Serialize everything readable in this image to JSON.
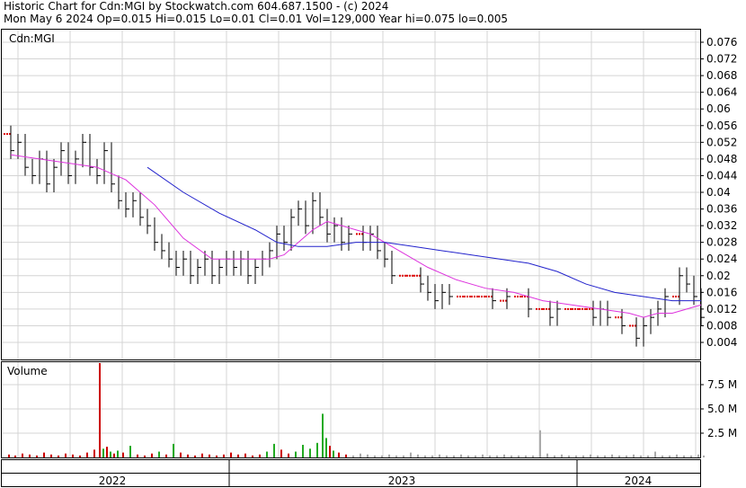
{
  "header": {
    "line1": "Historic Chart for Cdn:MGI by Stockwatch.com 604.687.1500 - (c) 2024",
    "line2": "Mon May  6 2024   Op=0.015  Hi=0.015  Lo=0.01  Cl=0.01  Vol=129,000  Year hi=0.075  lo=0.005"
  },
  "colors": {
    "candle": "#000000",
    "flat": "#dd0000",
    "ma_short": "#dd33dd",
    "ma_long": "#2222cc",
    "vol_up": "#22aa22",
    "vol_down": "#cc0000",
    "vol_flat": "#aaaaaa",
    "grid": "#d4d4d4"
  },
  "chart_data": [
    {
      "type": "line",
      "title": "Cdn:MGI",
      "ylim": [
        0.002,
        0.078
      ],
      "y_ticks": [
        "0.076",
        "0.072",
        "0.068",
        "0.064",
        "0.06",
        "0.056",
        "0.052",
        "0.048",
        "0.044",
        "0.04",
        "0.036",
        "0.032",
        "0.028",
        "0.024",
        "0.02",
        "0.016",
        "0.012",
        "0.008",
        "0.004"
      ],
      "x_ticks": [
        "2022",
        "2023",
        "2024"
      ],
      "grid": true,
      "series": [
        {
          "kind": "price",
          "x": [
            0,
            8,
            16,
            24,
            32,
            40,
            48,
            56,
            64,
            72,
            80,
            88,
            96,
            104,
            112,
            120,
            128,
            136,
            144,
            152,
            160,
            168,
            176,
            184,
            192,
            200,
            208,
            216,
            224,
            232,
            240,
            248,
            256,
            264,
            272,
            280,
            288,
            296,
            304,
            312,
            320,
            328,
            336,
            344,
            352,
            360,
            368,
            376,
            384,
            392,
            400,
            408,
            416,
            424,
            432,
            440,
            448,
            456,
            464,
            472,
            480,
            488,
            496,
            504,
            512,
            520,
            528,
            536,
            544,
            552,
            560,
            568,
            576,
            584,
            592,
            600,
            608,
            616,
            624,
            632,
            640,
            648,
            656,
            664,
            672,
            680,
            688,
            696,
            704,
            712,
            720,
            728,
            736,
            744,
            752,
            760,
            768,
            776
          ],
          "y": [
            0.054,
            0.05,
            0.052,
            0.046,
            0.044,
            0.048,
            0.042,
            0.046,
            0.05,
            0.044,
            0.048,
            0.052,
            0.046,
            0.044,
            0.05,
            0.042,
            0.038,
            0.036,
            0.038,
            0.034,
            0.032,
            0.028,
            0.026,
            0.024,
            0.022,
            0.024,
            0.02,
            0.022,
            0.024,
            0.02,
            0.022,
            0.024,
            0.022,
            0.024,
            0.02,
            0.022,
            0.024,
            0.026,
            0.03,
            0.028,
            0.034,
            0.036,
            0.032,
            0.038,
            0.034,
            0.03,
            0.032,
            0.028,
            0.03,
            0.03,
            0.028,
            0.03,
            0.026,
            0.024,
            0.02,
            0.02,
            0.02,
            0.02,
            0.018,
            0.016,
            0.014,
            0.016,
            0.015,
            0.015,
            0.015,
            0.015,
            0.015,
            0.015,
            0.014,
            0.014,
            0.015,
            0.015,
            0.015,
            0.012,
            0.012,
            0.012,
            0.01,
            0.012,
            0.012,
            0.012,
            0.012,
            0.012,
            0.01,
            0.012,
            0.01,
            0.01,
            0.008,
            0.008,
            0.005,
            0.008,
            0.01,
            0.012,
            0.015,
            0.015,
            0.02,
            0.018,
            0.015,
            0.01
          ]
        },
        {
          "name": "",
          "kind": "ma_short",
          "x": [
            8,
            40,
            72,
            104,
            136,
            168,
            200,
            232,
            264,
            296,
            312,
            328,
            344,
            360,
            376,
            392,
            408,
            424,
            440,
            472,
            504,
            536,
            568,
            600,
            632,
            664,
            696,
            712,
            728,
            744,
            760,
            776
          ],
          "y": [
            0.049,
            0.048,
            0.047,
            0.046,
            0.043,
            0.037,
            0.029,
            0.024,
            0.024,
            0.024,
            0.025,
            0.028,
            0.031,
            0.033,
            0.032,
            0.031,
            0.03,
            0.028,
            0.026,
            0.022,
            0.019,
            0.017,
            0.016,
            0.014,
            0.013,
            0.012,
            0.011,
            0.01,
            0.011,
            0.011,
            0.012,
            0.013
          ]
        },
        {
          "name": "",
          "kind": "ma_long",
          "x": [
            160,
            200,
            240,
            280,
            304,
            328,
            360,
            392,
            424,
            456,
            488,
            520,
            552,
            584,
            616,
            648,
            680,
            712,
            744,
            776
          ],
          "y": [
            0.046,
            0.04,
            0.035,
            0.031,
            0.028,
            0.027,
            0.027,
            0.028,
            0.028,
            0.027,
            0.026,
            0.025,
            0.024,
            0.023,
            0.021,
            0.018,
            0.016,
            0.015,
            0.014,
            0.014
          ]
        }
      ]
    },
    {
      "type": "bar",
      "title": "Volume",
      "ylim": [
        0,
        10
      ],
      "y_ticks": [
        "7.5 M",
        "5.0 M",
        "2.5 M"
      ],
      "x": [
        5,
        12,
        20,
        28,
        36,
        44,
        52,
        60,
        68,
        76,
        84,
        92,
        100,
        106,
        110,
        114,
        118,
        122,
        126,
        132,
        140,
        148,
        156,
        164,
        172,
        180,
        188,
        196,
        204,
        212,
        220,
        228,
        236,
        244,
        252,
        260,
        268,
        276,
        284,
        292,
        300,
        308,
        316,
        324,
        332,
        340,
        348,
        354,
        358,
        362,
        366,
        372,
        380,
        388,
        396,
        404,
        412,
        420,
        428,
        436,
        444,
        452,
        460,
        468,
        476,
        484,
        492,
        500,
        508,
        516,
        524,
        532,
        540,
        548,
        556,
        564,
        572,
        580,
        588,
        596,
        604,
        612,
        620,
        628,
        636,
        644,
        652,
        660,
        668,
        676,
        684,
        692,
        700,
        708,
        716,
        724,
        732,
        740,
        748,
        756,
        764,
        772,
        778
      ],
      "values": [
        0.3,
        0.2,
        0.4,
        0.3,
        0.2,
        0.5,
        0.3,
        0.2,
        0.4,
        0.3,
        0.2,
        0.5,
        0.8,
        10,
        0.9,
        1.1,
        0.6,
        0.4,
        0.7,
        0.5,
        1.2,
        0.3,
        0.2,
        0.4,
        0.6,
        0.3,
        1.4,
        0.5,
        0.3,
        0.2,
        0.4,
        0.3,
        0.2,
        0.3,
        0.5,
        0.3,
        0.4,
        0.2,
        0.3,
        0.6,
        1.4,
        0.8,
        0.4,
        0.6,
        1.3,
        0.9,
        1.5,
        4.5,
        2.0,
        1.2,
        0.7,
        0.5,
        0.3,
        0.2,
        0.4,
        0.3,
        0.2,
        0.2,
        0.3,
        0.2,
        0.2,
        0.5,
        0.3,
        0.2,
        0.2,
        0.3,
        0.2,
        0.2,
        0.3,
        0.2,
        0.2,
        0.3,
        0.2,
        0.2,
        0.3,
        0.2,
        0.2,
        0.2,
        0.2,
        2.8,
        0.4,
        0.2,
        0.3,
        0.2,
        0.2,
        0.2,
        0.3,
        0.2,
        0.2,
        0.3,
        0.2,
        0.2,
        0.3,
        0.2,
        0.2,
        0.6,
        0.2,
        0.2,
        0.3,
        0.2,
        0.2,
        0.3,
        0.2
      ],
      "colors": [
        "down",
        "down",
        "down",
        "down",
        "down",
        "down",
        "down",
        "down",
        "down",
        "down",
        "down",
        "down",
        "down",
        "down",
        "up",
        "down",
        "up",
        "down",
        "up",
        "down",
        "up",
        "down",
        "down",
        "down",
        "up",
        "down",
        "up",
        "down",
        "down",
        "down",
        "down",
        "down",
        "down",
        "down",
        "down",
        "down",
        "down",
        "down",
        "down",
        "up",
        "up",
        "down",
        "down",
        "up",
        "up",
        "up",
        "up",
        "up",
        "up",
        "down",
        "up",
        "down",
        "down",
        "flat",
        "flat",
        "flat",
        "flat",
        "flat",
        "flat",
        "flat",
        "flat",
        "flat",
        "flat",
        "flat",
        "flat",
        "flat",
        "flat",
        "flat",
        "flat",
        "flat",
        "flat",
        "flat",
        "flat",
        "flat",
        "flat",
        "flat",
        "flat",
        "flat",
        "flat",
        "flat",
        "flat",
        "flat",
        "flat",
        "flat",
        "flat",
        "flat",
        "flat",
        "flat",
        "flat",
        "flat",
        "flat",
        "flat",
        "flat",
        "flat",
        "flat",
        "flat",
        "flat",
        "flat",
        "flat",
        "flat",
        "flat",
        "flat",
        "flat"
      ]
    }
  ]
}
